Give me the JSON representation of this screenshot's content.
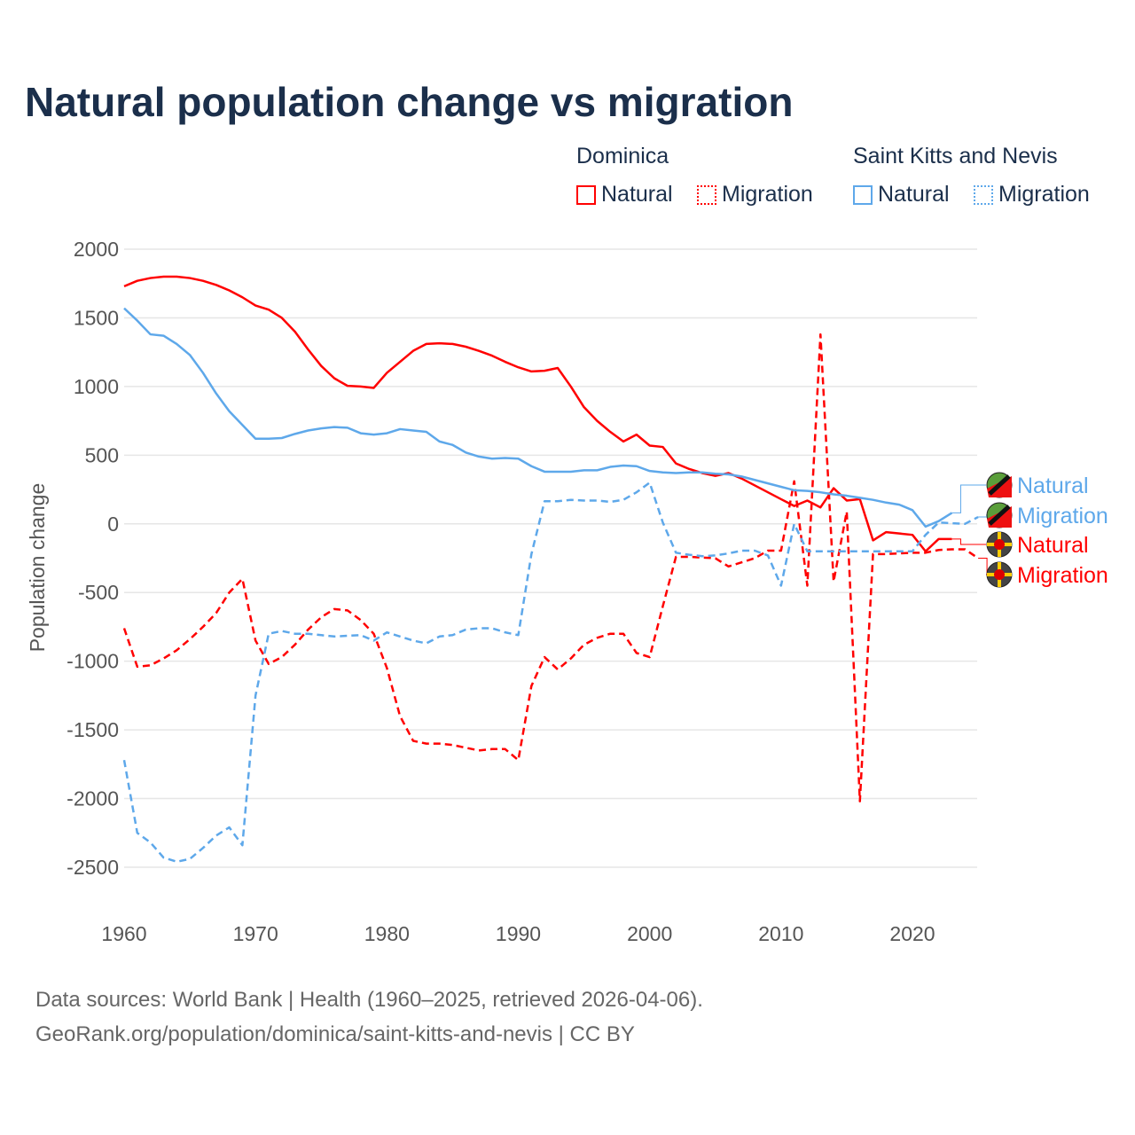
{
  "title": "Natural population change vs migration",
  "legend": {
    "groups": [
      {
        "name": "Dominica",
        "items": [
          {
            "label": "Natural",
            "color": "#ff0000",
            "style": "solid"
          },
          {
            "label": "Migration",
            "color": "#ff0000",
            "style": "dotted"
          }
        ]
      },
      {
        "name": "Saint Kitts and Nevis",
        "items": [
          {
            "label": "Natural",
            "color": "#5ea8ea",
            "style": "solid"
          },
          {
            "label": "Migration",
            "color": "#5ea8ea",
            "style": "dotted"
          }
        ]
      }
    ]
  },
  "footer": {
    "line1": "Data sources: World Bank | Health (1960–2025, retrieved 2026-04-06).",
    "line2": "GeoRank.org/population/dominica/saint-kitts-and-nevis | CC BY"
  },
  "chart_data": {
    "type": "line",
    "title": "Natural population change vs migration",
    "xlabel": "",
    "ylabel": "Population change",
    "xlim": [
      1960,
      2025
    ],
    "ylim": [
      -2500,
      2000
    ],
    "xticks": [
      "1960",
      "1970",
      "1980",
      "1990",
      "2000",
      "2010",
      "2020"
    ],
    "yticks": [
      "2000",
      "1500",
      "1000",
      "500",
      "0",
      "-500",
      "-1000",
      "-1500",
      "-2000",
      "-2500"
    ],
    "grid": true,
    "series": [
      {
        "name": "Dominica Natural",
        "end_label": "Natural",
        "color": "#ff0000",
        "dash": false,
        "start": 1960,
        "values": [
          1730,
          1770,
          1790,
          1800,
          1800,
          1790,
          1770,
          1740,
          1700,
          1650,
          1590,
          1560,
          1500,
          1400,
          1270,
          1150,
          1060,
          1005,
          1000,
          990,
          1100,
          1180,
          1260,
          1310,
          1315,
          1310,
          1290,
          1260,
          1225,
          1180,
          1140,
          1110,
          1115,
          1135,
          1000,
          850,
          750,
          670,
          600,
          650,
          570,
          560,
          440,
          400,
          370,
          350,
          370,
          330,
          280,
          230,
          180,
          130,
          170,
          120,
          260,
          170,
          180,
          -120,
          -60,
          -70,
          -80,
          -200,
          -110,
          -110
        ]
      },
      {
        "name": "Dominica Migration",
        "end_label": "Migration",
        "color": "#ff0000",
        "dash": true,
        "start": 1960,
        "values": [
          -760,
          -1040,
          -1030,
          -980,
          -920,
          -840,
          -750,
          -650,
          -500,
          -400,
          -850,
          -1020,
          -970,
          -880,
          -770,
          -680,
          -620,
          -630,
          -700,
          -800,
          -1050,
          -1400,
          -1580,
          -1600,
          -1600,
          -1610,
          -1630,
          -1650,
          -1640,
          -1640,
          -1720,
          -1180,
          -970,
          -1060,
          -980,
          -880,
          -830,
          -800,
          -800,
          -940,
          -970,
          -600,
          -240,
          -240,
          -245,
          -250,
          -310,
          -280,
          -250,
          -195,
          -195,
          310,
          -450,
          1380,
          -420,
          90,
          -2020,
          -220,
          -220,
          -215,
          -210,
          -210,
          -190,
          -185,
          -185,
          -250
        ]
      },
      {
        "name": "Saint Kitts and Nevis Natural",
        "end_label": "Natural",
        "color": "#5ea8ea",
        "dash": false,
        "start": 1960,
        "values": [
          1570,
          1480,
          1380,
          1370,
          1310,
          1230,
          1100,
          950,
          820,
          720,
          620,
          620,
          625,
          655,
          680,
          695,
          705,
          700,
          660,
          650,
          660,
          690,
          680,
          670,
          600,
          575,
          520,
          490,
          475,
          480,
          475,
          420,
          380,
          380,
          380,
          390,
          390,
          415,
          425,
          420,
          385,
          375,
          370,
          375,
          375,
          365,
          360,
          345,
          320,
          295,
          270,
          245,
          240,
          230,
          215,
          205,
          190,
          175,
          155,
          140,
          100,
          -20,
          20,
          80
        ]
      },
      {
        "name": "Saint Kitts and Nevis Migration",
        "end_label": "Migration",
        "color": "#5ea8ea",
        "dash": true,
        "start": 1960,
        "values": [
          -1720,
          -2250,
          -2320,
          -2430,
          -2460,
          -2440,
          -2360,
          -2270,
          -2210,
          -2340,
          -1250,
          -800,
          -780,
          -800,
          -800,
          -810,
          -820,
          -815,
          -810,
          -850,
          -790,
          -820,
          -850,
          -870,
          -820,
          -810,
          -770,
          -760,
          -760,
          -790,
          -810,
          -220,
          165,
          165,
          175,
          170,
          170,
          160,
          175,
          230,
          300,
          10,
          -210,
          -225,
          -235,
          -230,
          -215,
          -195,
          -195,
          -230,
          -450,
          0,
          -200,
          -200,
          -200,
          -200,
          -200,
          -200,
          -200,
          -200,
          -200,
          -80,
          10,
          5,
          0,
          50
        ]
      }
    ]
  }
}
